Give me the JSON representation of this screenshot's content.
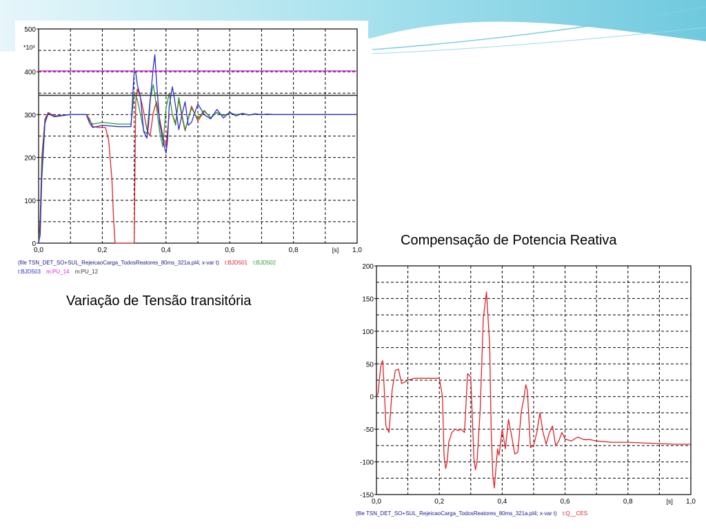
{
  "slide": {
    "caption_voltage": "Variação de Tensão transitória",
    "caption_reactive": "Compensação de Potencia Reativa",
    "accent": "#8fd6e6"
  },
  "chart_data": [
    {
      "type": "line",
      "ylim": [
        0,
        500
      ],
      "xlim": [
        0,
        1.0
      ],
      "y_multiplier_label": "*10³",
      "x_unit_label": "[s]",
      "yticks": [
        "0",
        "100",
        "200",
        "300",
        "400",
        "500"
      ],
      "xticks": [
        "0,0",
        "0,2",
        "0,4",
        "0,6",
        "0,8",
        "1,0"
      ],
      "grid": true,
      "legend": {
        "file": "(file TSN_DET_SO+SUL_RejeicaoCarga_TodosReatores_80ms_321a.pl4; x-var t)",
        "entries": [
          {
            "name": "t:BJD501",
            "color": "#e0202a"
          },
          {
            "name": "t:BJD502",
            "color": "#2a9a2a"
          },
          {
            "name": "t:BJD503",
            "color": "#2a2ad8"
          },
          {
            "name": "m:PU_14",
            "color": "#e020e0"
          },
          {
            "name": "m:PU_12",
            "color": "#303030"
          }
        ]
      },
      "series": [
        {
          "name": "t:BJD501",
          "color": "#e0202a",
          "x": [
            0,
            0.005,
            0.01,
            0.02,
            0.03,
            0.05,
            0.1,
            0.15,
            0.16,
            0.165,
            0.17,
            0.19,
            0.21,
            0.22,
            0.23,
            0.235,
            0.24,
            0.3,
            0.305,
            0.31,
            0.32,
            0.33,
            0.34,
            0.35,
            0.36,
            0.37,
            0.38,
            0.39,
            0.4,
            0.41,
            0.42,
            0.43,
            0.44,
            0.45,
            0.46,
            0.47,
            0.48,
            0.5,
            0.52,
            0.54,
            0.56,
            0.58,
            0.6,
            0.62,
            0.64,
            0.66,
            0.68,
            0.7,
            0.72,
            0.74,
            0.76,
            0.8,
            0.9,
            1.0
          ],
          "y": [
            0,
            60,
            200,
            290,
            305,
            297,
            300,
            300,
            290,
            280,
            272,
            270,
            270,
            240,
            150,
            60,
            0,
            0,
            330,
            360,
            340,
            305,
            265,
            250,
            305,
            330,
            290,
            250,
            225,
            300,
            300,
            280,
            335,
            295,
            262,
            290,
            320,
            285,
            308,
            293,
            305,
            298,
            303,
            300,
            302,
            299,
            301,
            300,
            301,
            300,
            300,
            300,
            300,
            300
          ]
        },
        {
          "name": "t:BJD502",
          "color": "#2a9a2a",
          "x": [
            0,
            0.005,
            0.01,
            0.02,
            0.03,
            0.05,
            0.1,
            0.15,
            0.16,
            0.17,
            0.2,
            0.25,
            0.29,
            0.3,
            0.31,
            0.32,
            0.33,
            0.34,
            0.35,
            0.36,
            0.37,
            0.38,
            0.39,
            0.4,
            0.41,
            0.42,
            0.43,
            0.44,
            0.45,
            0.46,
            0.47,
            0.48,
            0.5,
            0.52,
            0.54,
            0.56,
            0.58,
            0.6,
            0.62,
            0.64,
            0.66,
            0.68,
            0.7,
            0.72,
            0.74,
            0.76,
            0.8,
            0.9,
            1.0
          ],
          "y": [
            0,
            40,
            180,
            285,
            303,
            296,
            300,
            300,
            285,
            278,
            282,
            278,
            278,
            350,
            335,
            300,
            262,
            255,
            335,
            370,
            320,
            260,
            225,
            315,
            350,
            300,
            275,
            340,
            300,
            265,
            290,
            315,
            290,
            310,
            292,
            305,
            298,
            303,
            300,
            302,
            299,
            301,
            300,
            301,
            300,
            300,
            300,
            300,
            300
          ]
        },
        {
          "name": "t:BJD503",
          "color": "#2a2ad8",
          "x": [
            0,
            0.005,
            0.01,
            0.02,
            0.03,
            0.05,
            0.1,
            0.15,
            0.16,
            0.17,
            0.2,
            0.25,
            0.29,
            0.3,
            0.305,
            0.31,
            0.32,
            0.33,
            0.34,
            0.345,
            0.35,
            0.36,
            0.365,
            0.37,
            0.38,
            0.39,
            0.4,
            0.405,
            0.41,
            0.42,
            0.43,
            0.44,
            0.45,
            0.46,
            0.47,
            0.48,
            0.5,
            0.52,
            0.54,
            0.56,
            0.58,
            0.6,
            0.62,
            0.64,
            0.66,
            0.68,
            0.7,
            0.72,
            0.74,
            0.76,
            0.8,
            0.9,
            1.0
          ],
          "y": [
            0,
            20,
            150,
            280,
            302,
            295,
            300,
            300,
            280,
            270,
            275,
            272,
            272,
            400,
            398,
            370,
            340,
            260,
            245,
            275,
            330,
            410,
            440,
            380,
            280,
            240,
            210,
            240,
            320,
            365,
            320,
            265,
            300,
            330,
            275,
            282,
            325,
            300,
            290,
            312,
            292,
            306,
            297,
            303,
            299,
            302,
            300,
            301,
            300,
            300,
            300,
            300,
            300
          ]
        },
        {
          "name": "m:PU_14",
          "color": "#e020e0",
          "x": [
            0,
            1.0
          ],
          "y": [
            402,
            402
          ]
        },
        {
          "name": "m:PU_12",
          "color": "#303030",
          "x": [
            0,
            1.0
          ],
          "y": [
            345,
            345
          ]
        }
      ]
    },
    {
      "type": "line",
      "ylim": [
        -150,
        200
      ],
      "xlim": [
        0,
        1.0
      ],
      "x_unit_label": "[s]",
      "yticks": [
        "-150",
        "-100",
        "-50",
        "0",
        "50",
        "100",
        "150",
        "200"
      ],
      "xticks": [
        "0,0",
        "0,2",
        "0,4",
        "0,6",
        "0,8",
        "1,0"
      ],
      "grid": true,
      "legend": {
        "file": "(file TSN_DET_SO+SUL_RejeicaoCarga_TodosReatores_80ms_321a.pl4; x-var t)",
        "entries": [
          {
            "name": "t:Q__CES",
            "color": "#e0202a"
          }
        ]
      },
      "series": [
        {
          "name": "t:Q__CES",
          "color": "#e0202a",
          "x": [
            0,
            0.005,
            0.01,
            0.015,
            0.02,
            0.025,
            0.03,
            0.04,
            0.05,
            0.06,
            0.07,
            0.08,
            0.09,
            0.1,
            0.12,
            0.15,
            0.2,
            0.21,
            0.215,
            0.22,
            0.225,
            0.23,
            0.24,
            0.25,
            0.26,
            0.27,
            0.28,
            0.29,
            0.3,
            0.31,
            0.315,
            0.32,
            0.33,
            0.34,
            0.35,
            0.36,
            0.365,
            0.37,
            0.375,
            0.38,
            0.385,
            0.39,
            0.4,
            0.41,
            0.42,
            0.43,
            0.44,
            0.45,
            0.46,
            0.47,
            0.475,
            0.48,
            0.49,
            0.5,
            0.51,
            0.52,
            0.53,
            0.54,
            0.55,
            0.56,
            0.57,
            0.58,
            0.59,
            0.6,
            0.62,
            0.64,
            0.66,
            0.68,
            0.7,
            0.75,
            0.8,
            0.85,
            0.9,
            0.95,
            1.0
          ],
          "y": [
            0,
            5,
            30,
            50,
            55,
            10,
            -45,
            -55,
            10,
            40,
            42,
            20,
            22,
            25,
            28,
            28,
            28,
            0,
            -90,
            -110,
            -100,
            -70,
            -55,
            -50,
            -52,
            -50,
            -55,
            35,
            30,
            -95,
            -112,
            -100,
            -20,
            120,
            160,
            80,
            -50,
            -120,
            -140,
            -110,
            -80,
            -90,
            -50,
            -80,
            -35,
            -60,
            -88,
            -85,
            -25,
            0,
            18,
            10,
            -78,
            -75,
            -55,
            -25,
            -55,
            -73,
            -55,
            -45,
            -75,
            -68,
            -55,
            -65,
            -68,
            -62,
            -66,
            -66,
            -68,
            -70,
            -70,
            -71,
            -72,
            -73,
            -73
          ]
        }
      ]
    }
  ]
}
